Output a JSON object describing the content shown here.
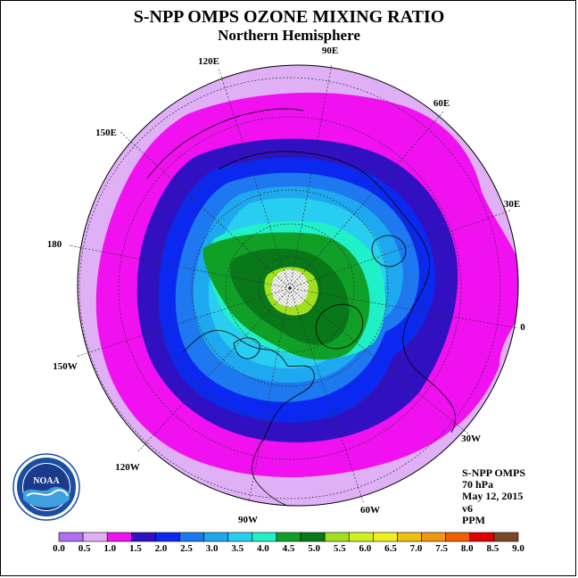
{
  "header": {
    "title": "S-NPP OMPS OZONE MIXING RATIO",
    "subtitle": "Northern Hemisphere"
  },
  "map": {
    "longitude_labels": [
      "90E",
      "60E",
      "30E",
      "0",
      "30W",
      "60W",
      "90W",
      "120W",
      "150W",
      "180",
      "150E",
      "120E"
    ]
  },
  "info": {
    "instrument": "S-NPP OMPS",
    "level": "70 hPa",
    "date": "May 12, 2015",
    "version": "v6",
    "unit": "PPM"
  },
  "colorbar": {
    "ticks": [
      "0.0",
      "0.5",
      "1.0",
      "1.5",
      "2.0",
      "2.5",
      "3.0",
      "3.5",
      "4.0",
      "4.5",
      "5.0",
      "5.5",
      "6.0",
      "6.5",
      "7.0",
      "7.5",
      "8.0",
      "8.5",
      "9.0"
    ],
    "colors": [
      "#b06ef0",
      "#e0b0f6",
      "#f010f0",
      "#3010c0",
      "#0a28f0",
      "#1e78f0",
      "#1ea8f0",
      "#28cef0",
      "#20f0c8",
      "#10a028",
      "#087818",
      "#a0e020",
      "#d0f020",
      "#f0f020",
      "#f0c010",
      "#f09810",
      "#f06000",
      "#e00000",
      "#7a4828"
    ]
  },
  "logo": {
    "text": "NOAA",
    "ring_text": "NATIONAL OCEANIC AND ATMOSPHERIC ADMINISTRATION · U.S. DEPARTMENT OF COMMERCE"
  }
}
